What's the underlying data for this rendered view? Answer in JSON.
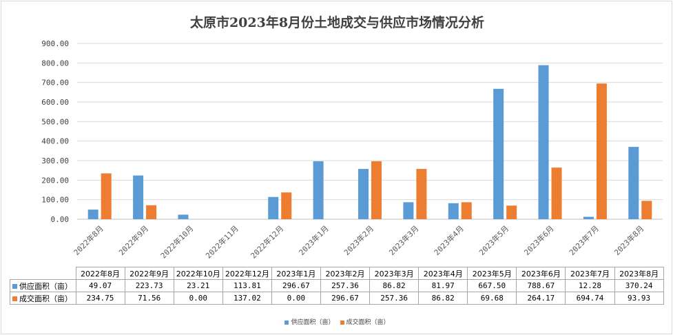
{
  "chart_data": {
    "type": "bar",
    "title": "太原市2023年8月份土地成交与供应市场情况分析",
    "categories": [
      "2022年8月",
      "2022年9月",
      "2022年10月",
      "2022年11月",
      "2022年12月",
      "2023年1月",
      "2023年2月",
      "2023年3月",
      "2023年4月",
      "2023年5月",
      "2023年6月",
      "2023年7月",
      "2023年8月"
    ],
    "series": [
      {
        "name": "供应面积（亩）",
        "color": "#5b9bd5",
        "values": [
          49.07,
          223.73,
          23.21,
          null,
          113.81,
          296.67,
          257.36,
          86.82,
          81.97,
          667.5,
          788.67,
          12.28,
          370.24
        ]
      },
      {
        "name": "成交面积（亩）",
        "color": "#ed7d31",
        "values": [
          234.75,
          71.56,
          0.0,
          null,
          137.02,
          0.0,
          296.67,
          257.36,
          86.82,
          69.68,
          264.17,
          694.74,
          93.93
        ]
      }
    ],
    "y_ticks": [
      "0.00",
      "100.00",
      "200.00",
      "300.00",
      "400.00",
      "500.00",
      "600.00",
      "700.00",
      "800.00",
      "900.00"
    ],
    "ylim": [
      0,
      900
    ],
    "grid": true,
    "legend_position": "bottom"
  },
  "table": {
    "columns": [
      "2022年8月",
      "2022年9月",
      "2022年10月",
      "2022年12月",
      "2023年1月",
      "2023年2月",
      "2023年3月",
      "2023年4月",
      "2023年5月",
      "2023年6月",
      "2023年7月",
      "2023年8月"
    ],
    "rows": [
      {
        "label": "供应面积（亩）",
        "color": "#5b9bd5",
        "cells": [
          "49.07",
          "223.73",
          "23.21",
          "113.81",
          "296.67",
          "257.36",
          "86.82",
          "81.97",
          "667.50",
          "788.67",
          "12.28",
          "370.24"
        ]
      },
      {
        "label": "成交面积（亩）",
        "color": "#ed7d31",
        "cells": [
          "234.75",
          "71.56",
          "0.00",
          "137.02",
          "0.00",
          "296.67",
          "257.36",
          "86.82",
          "69.68",
          "264.17",
          "694.74",
          "93.93"
        ]
      }
    ]
  },
  "legend": [
    {
      "label": "供应面积（亩）",
      "color": "#5b9bd5"
    },
    {
      "label": "成交面积（亩）",
      "color": "#ed7d31"
    }
  ]
}
